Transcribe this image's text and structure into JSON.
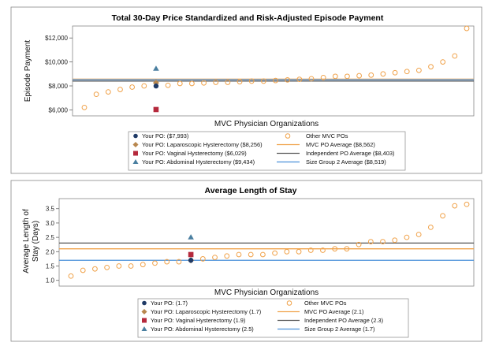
{
  "colors": {
    "your_po": "#1f3a66",
    "laparoscopic": "#b8874e",
    "vaginal": "#b5293c",
    "abdominal": "#4a7fa0",
    "other_po": "#f0a24a",
    "mvc_avg": "#f0a24a",
    "independent_avg": "#555555",
    "size_group_avg": "#4a90d9"
  },
  "chart_data": [
    {
      "type": "scatter",
      "title": "Total 30-Day Price Standardized and Risk-Adjusted Episode Payment",
      "xlabel": "MVC Physician Organizations",
      "ylabel": "Episode Payment",
      "ylim": [
        5500,
        13000
      ],
      "yticks": [
        6000,
        8000,
        10000,
        12000
      ],
      "yticklabels": [
        "$6,000",
        "$8,000",
        "$10,000",
        "$12,000"
      ],
      "other_pos": [
        6200,
        7300,
        7500,
        7700,
        7900,
        8000,
        8000,
        8050,
        8200,
        8200,
        8250,
        8300,
        8300,
        8350,
        8400,
        8400,
        8450,
        8500,
        8550,
        8600,
        8700,
        8800,
        8800,
        8850,
        8900,
        9000,
        9100,
        9200,
        9300,
        9600,
        10000,
        10500,
        12800
      ],
      "your_po_index": 6,
      "your_po": {
        "name": "Your PO: ($7,993)",
        "value": 7993
      },
      "laparoscopic": {
        "name": "Your PO: Laparoscopic Hysterectomy ($8,256)",
        "value": 8256
      },
      "vaginal": {
        "name": "Your PO: Vaginal Hysterectomy ($6,029)",
        "value": 6029
      },
      "abdominal": {
        "name": "Your PO: Abdominal Hysterectomy ($9,434)",
        "value": 9434
      },
      "other_label": "Other MVC POs",
      "mvc_avg": {
        "name": "MVC PO Average ($8,562)",
        "value": 8562
      },
      "independent_avg": {
        "name": "Independent PO Average ($8,403)",
        "value": 8403
      },
      "size_group_avg": {
        "name": "Size Group 2 Average ($8,519)",
        "value": 8519
      }
    },
    {
      "type": "scatter",
      "title": "Average Length of Stay",
      "xlabel": "MVC Physician Organizations",
      "ylabel": "Average Length of Stay (Days)",
      "ylim": [
        0.8,
        3.85
      ],
      "yticks": [
        1.0,
        1.5,
        2.0,
        2.5,
        3.0,
        3.5
      ],
      "yticklabels": [
        "1.0",
        "1.5",
        "2.0",
        "2.5",
        "3.0",
        "3.5"
      ],
      "other_pos": [
        1.15,
        1.35,
        1.4,
        1.45,
        1.5,
        1.5,
        1.55,
        1.6,
        1.65,
        1.65,
        1.7,
        1.75,
        1.8,
        1.85,
        1.9,
        1.9,
        1.9,
        1.95,
        2.0,
        2.0,
        2.05,
        2.05,
        2.1,
        2.1,
        2.25,
        2.35,
        2.35,
        2.4,
        2.5,
        2.6,
        2.85,
        3.25,
        3.6,
        3.65
      ],
      "your_po_index": 10,
      "your_po": {
        "name": "Your PO: (1.7)",
        "value": 1.7
      },
      "laparoscopic": {
        "name": "Your PO: Laparoscopic Hysterectomy (1.7)",
        "value": 1.7
      },
      "vaginal": {
        "name": "Your PO: Vaginal Hysterectomy (1.9)",
        "value": 1.9
      },
      "abdominal": {
        "name": "Your PO: Abdominal Hysterectomy (2.5)",
        "value": 2.5
      },
      "other_label": "Other MVC POs",
      "mvc_avg": {
        "name": "MVC PO Average (2.1)",
        "value": 2.1
      },
      "independent_avg": {
        "name": "Independent PO Average (2.3)",
        "value": 2.3
      },
      "size_group_avg": {
        "name": "Size Group 2 Average (1.7)",
        "value": 1.7
      }
    }
  ]
}
